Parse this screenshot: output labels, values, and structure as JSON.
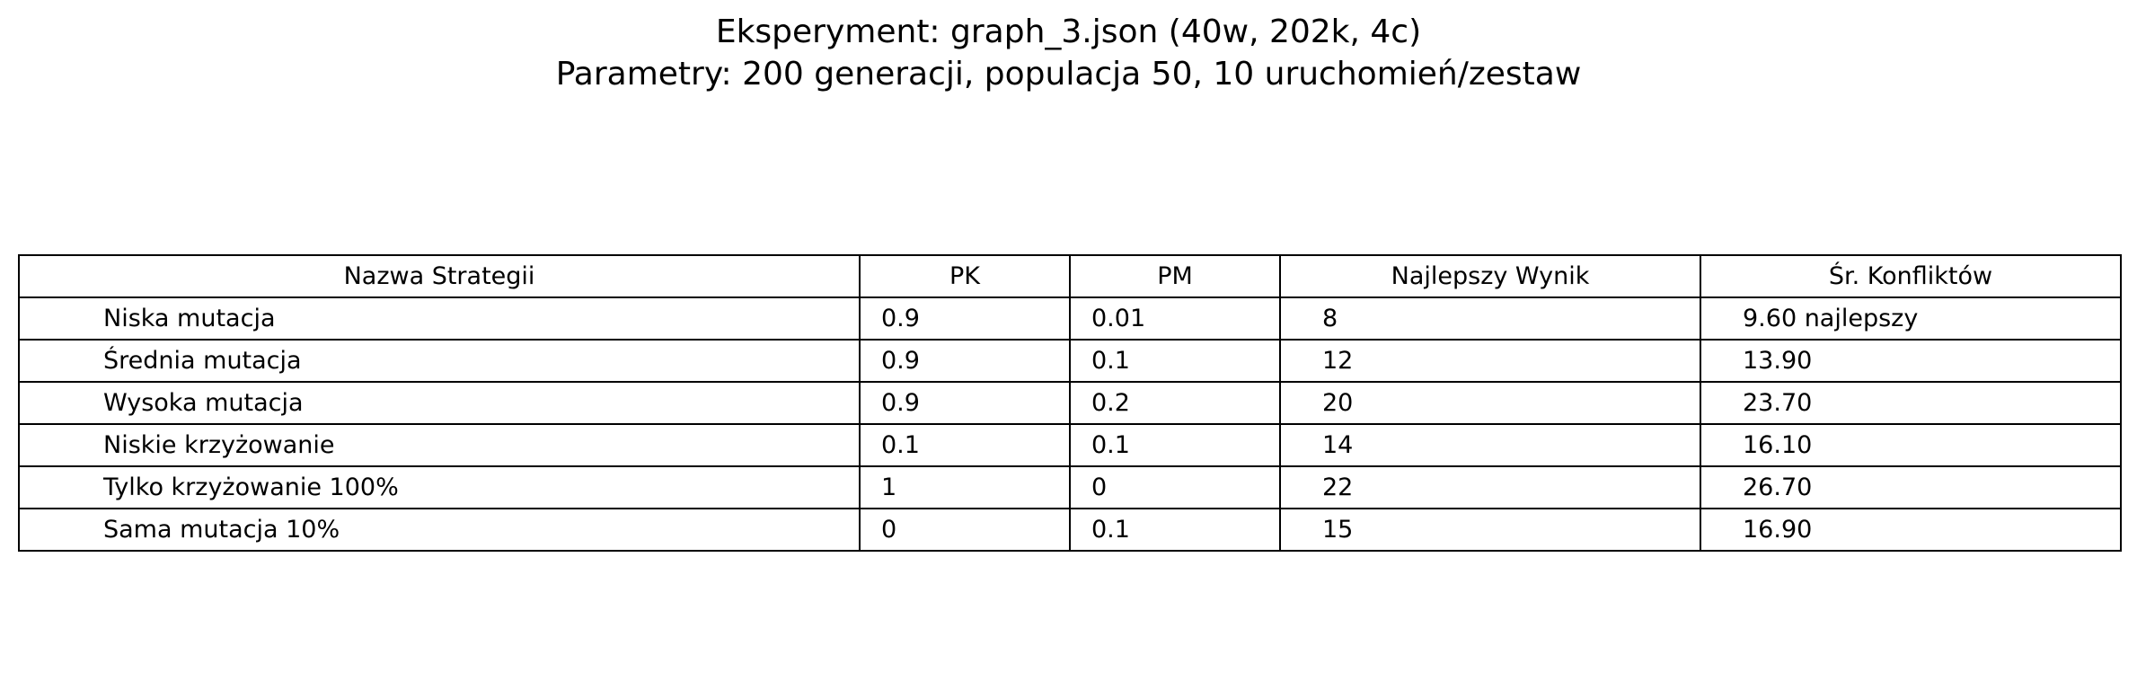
{
  "chart_data": {
    "type": "table",
    "title": "Eksperyment: graph_3.json (40w, 202k, 4c)",
    "subtitle": "Parametry: 200 generacji, populacja 50, 10 uruchomień/zestaw",
    "columns": [
      "Nazwa Strategii",
      "PK",
      "PM",
      "Najlepszy Wynik",
      "Śr. Konfliktów"
    ],
    "rows": [
      [
        "Niska mutacja",
        "0.9",
        "0.01",
        "8",
        "9.60 najlepszy"
      ],
      [
        "Średnia mutacja",
        "0.9",
        "0.1",
        "12",
        "13.90"
      ],
      [
        "Wysoka mutacja",
        "0.9",
        "0.2",
        "20",
        "23.70"
      ],
      [
        "Niskie krzyżowanie",
        "0.1",
        "0.1",
        "14",
        "16.10"
      ],
      [
        "Tylko krzyżowanie 100%",
        "1",
        "0",
        "22",
        "26.70"
      ],
      [
        "Sama mutacja 10%",
        "0",
        "0.1",
        "15",
        "16.90"
      ]
    ]
  }
}
